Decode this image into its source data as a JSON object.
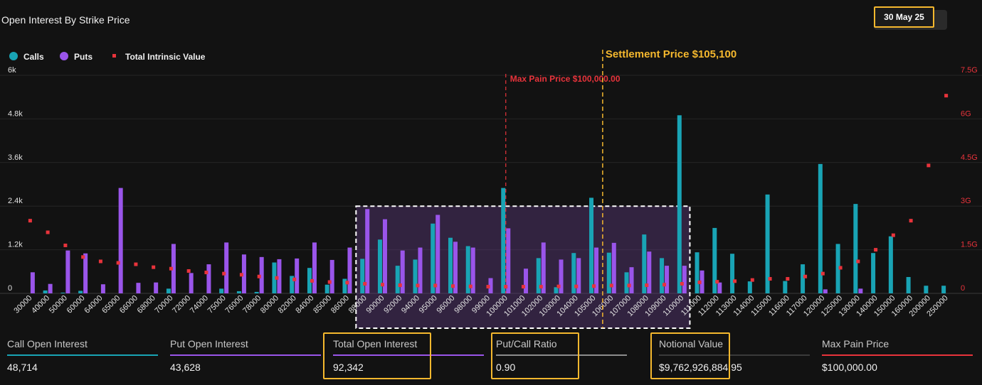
{
  "header": {
    "title": "Open Interest By Strike Price",
    "date_label": "30 May 25"
  },
  "colors": {
    "calls": "#19a4b5",
    "puts": "#9a55ea",
    "intrinsic": "#e8333b",
    "highlight": "#f5b82e",
    "max_pain": "#e8333b",
    "settlement": "#f5b82e"
  },
  "chart_data": {
    "type": "bar",
    "legend": [
      {
        "name": "Calls",
        "color": "#19a4b5",
        "marker": "circle"
      },
      {
        "name": "Puts",
        "color": "#9a55ea",
        "marker": "circle"
      },
      {
        "name": "Total Intrinsic Value",
        "color": "#e8333b",
        "marker": "square"
      }
    ],
    "legend_position": "top-left",
    "categories": [
      "30000",
      "40000",
      "50000",
      "60000",
      "64000",
      "65000",
      "66000",
      "68000",
      "70000",
      "72000",
      "74000",
      "75000",
      "76000",
      "78000",
      "80000",
      "82000",
      "84000",
      "85000",
      "86000",
      "88000",
      "90000",
      "92000",
      "94000",
      "95000",
      "96000",
      "98000",
      "99000",
      "100000",
      "101000",
      "102000",
      "103000",
      "104000",
      "105000",
      "106000",
      "107000",
      "108000",
      "109000",
      "110000",
      "111000",
      "112000",
      "113000",
      "114000",
      "115000",
      "116000",
      "117000",
      "120000",
      "125000",
      "130000",
      "140000",
      "150000",
      "160000",
      "200000",
      "250000"
    ],
    "series": [
      {
        "name": "Calls",
        "axis": "left",
        "values": [
          0,
          80,
          20,
          70,
          0,
          0,
          0,
          0,
          130,
          0,
          0,
          130,
          60,
          40,
          850,
          480,
          700,
          240,
          400,
          950,
          1480,
          760,
          930,
          1920,
          1530,
          1300,
          0,
          2900,
          0,
          970,
          170,
          1110,
          2630,
          1120,
          580,
          1620,
          970,
          4900,
          1130,
          1800,
          1090,
          330,
          2720,
          340,
          800,
          3560,
          1360,
          2460,
          1110,
          1570,
          450,
          210,
          210
        ]
      },
      {
        "name": "Puts",
        "axis": "left",
        "values": [
          580,
          260,
          1180,
          1100,
          250,
          2900,
          290,
          300,
          1360,
          560,
          800,
          1400,
          1070,
          1000,
          940,
          960,
          1400,
          920,
          1260,
          2320,
          2040,
          1180,
          1260,
          2160,
          1420,
          1260,
          420,
          1790,
          680,
          1400,
          930,
          970,
          1260,
          1390,
          720,
          1150,
          760,
          760,
          630,
          300,
          0,
          0,
          0,
          0,
          0,
          110,
          0,
          130,
          0,
          0,
          0,
          0,
          0
        ]
      },
      {
        "name": "Total Intrinsic Value",
        "axis": "right",
        "values": [
          2.5,
          2.1,
          1.65,
          1.25,
          1.1,
          1.05,
          1.0,
          0.9,
          0.85,
          0.77,
          0.72,
          0.68,
          0.64,
          0.58,
          0.53,
          0.48,
          0.43,
          0.39,
          0.37,
          0.33,
          0.3,
          0.28,
          0.27,
          0.27,
          0.25,
          0.24,
          0.23,
          0.23,
          0.23,
          0.23,
          0.24,
          0.24,
          0.25,
          0.27,
          0.27,
          0.28,
          0.3,
          0.33,
          0.38,
          0.4,
          0.42,
          0.46,
          0.5,
          0.5,
          0.58,
          0.68,
          0.88,
          1.1,
          1.5,
          2.0,
          2.5,
          4.4,
          6.8
        ]
      }
    ],
    "y_left": {
      "min": 0,
      "max": 6000,
      "ticks": [
        0,
        1200,
        2400,
        3600,
        4800,
        6000
      ],
      "tick_labels": [
        "0",
        "1.2k",
        "2.4k",
        "3.6k",
        "4.8k",
        "6k"
      ]
    },
    "y_right": {
      "min": 0,
      "max": 7.5,
      "ticks": [
        0,
        1.5,
        3,
        4.5,
        6,
        7.5
      ],
      "tick_labels": [
        "0",
        "1.5G",
        "3G",
        "4.5G",
        "6G",
        "7.5G"
      ]
    },
    "annotations": {
      "max_pain": {
        "strike": "100000",
        "label": "Max Pain Price $100,000.00"
      },
      "settlement": {
        "strike": "105000",
        "offset": 0.5,
        "label": "Settlement Price $105,100"
      },
      "highlight_range": {
        "from": "88000",
        "to": "110000",
        "y_max": 2400
      }
    }
  },
  "stats": [
    {
      "label": "Call Open Interest",
      "value": "48,714",
      "color": "#19a4b5",
      "highlight": false
    },
    {
      "label": "Put Open Interest",
      "value": "43,628",
      "color": "#9a55ea",
      "highlight": false
    },
    {
      "label": "Total Open Interest",
      "value": "92,342",
      "color": "#9a55ea",
      "highlight": true
    },
    {
      "label": "Put/Call Ratio",
      "value": "0.90",
      "color": "#8c8c8c",
      "highlight": true
    },
    {
      "label": "Notional Value",
      "value": "$9,762,926,884.95",
      "color": "#3a3a3a",
      "highlight": true
    },
    {
      "label": "Max Pain Price",
      "value": "$100,000.00",
      "color": "#e8333b",
      "highlight": false
    }
  ]
}
